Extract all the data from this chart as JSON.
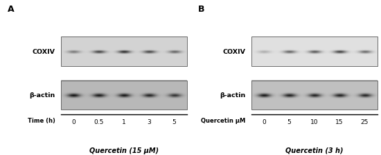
{
  "panel_A_label": "A",
  "panel_B_label": "B",
  "panel_A_xlabel": "Quercetin (15 μM)",
  "panel_B_xlabel": "Quercetin (3 h)",
  "panel_A_time_label": "Time (h)",
  "panel_B_conc_label": "Quercetin μM",
  "panel_A_time_points": [
    "0",
    "0.5",
    "1",
    "3",
    "5"
  ],
  "panel_B_conc_points": [
    "0",
    "5",
    "10",
    "15",
    "25"
  ],
  "row_labels_top": "COXIV",
  "row_labels_bot": "β-actin",
  "bg_color": "#ffffff",
  "blot_bg_A_top": "#d4d4d4",
  "blot_bg_A_bot": "#b8b8b8",
  "blot_bg_B_top": "#e0e0e0",
  "blot_bg_B_bot": "#c0c0c0",
  "panel_A_COXIV_intensities": [
    0.5,
    0.8,
    0.92,
    0.78,
    0.62
  ],
  "panel_A_actin_intensities": [
    0.88,
    0.85,
    0.86,
    0.8,
    0.72
  ],
  "panel_B_COXIV_intensities": [
    0.28,
    0.68,
    0.75,
    0.88,
    0.65
  ],
  "panel_B_actin_intensities": [
    0.9,
    0.87,
    0.85,
    0.86,
    0.83
  ]
}
